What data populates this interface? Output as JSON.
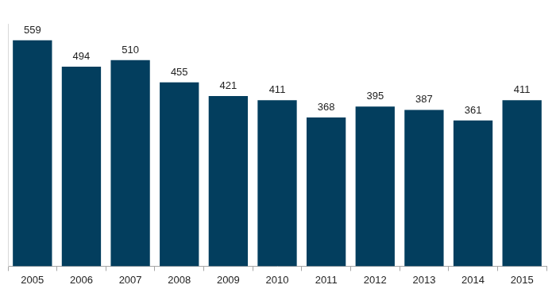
{
  "chart_data": {
    "type": "bar",
    "categories": [
      "2005",
      "2006",
      "2007",
      "2008",
      "2009",
      "2010",
      "2011",
      "2012",
      "2013",
      "2014",
      "2015"
    ],
    "values": [
      559,
      494,
      510,
      455,
      421,
      411,
      368,
      395,
      387,
      361,
      411
    ],
    "color": "#033e5e",
    "ylim": [
      0,
      600
    ],
    "grid": false,
    "data_labels": true,
    "tick_labels": "x"
  }
}
